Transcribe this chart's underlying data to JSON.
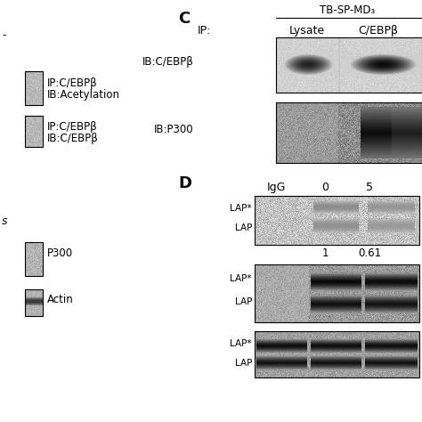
{
  "panel_C_label": "C",
  "panel_D_label": "D",
  "panel_C_title": "TB-SP-MD₃",
  "panel_C_ip_label": "IP:",
  "panel_C_col1": "Lysate",
  "panel_C_col2": "C/EBPβ",
  "panel_C_row1_label": "IB:C/EBPβ",
  "panel_C_row2_label": "IB:P300",
  "panel_left_label1a": "IP:C/EBPβ",
  "panel_left_label1b": "IB:Acetylation",
  "panel_left_label2a": "IP:C/EBPβ",
  "panel_left_label2b": "IB:C/EBPβ",
  "panel_left_label3": "P300",
  "panel_left_label4": "Actin",
  "panel_D_col1": "IgG",
  "panel_D_col2": "0",
  "panel_D_col3": "5",
  "lap_star": "LAP*",
  "lap": "LAP",
  "panel_D_number1": "1",
  "panel_D_number2": "0.61",
  "partial_left_top": "-",
  "partial_left_bot": "s"
}
